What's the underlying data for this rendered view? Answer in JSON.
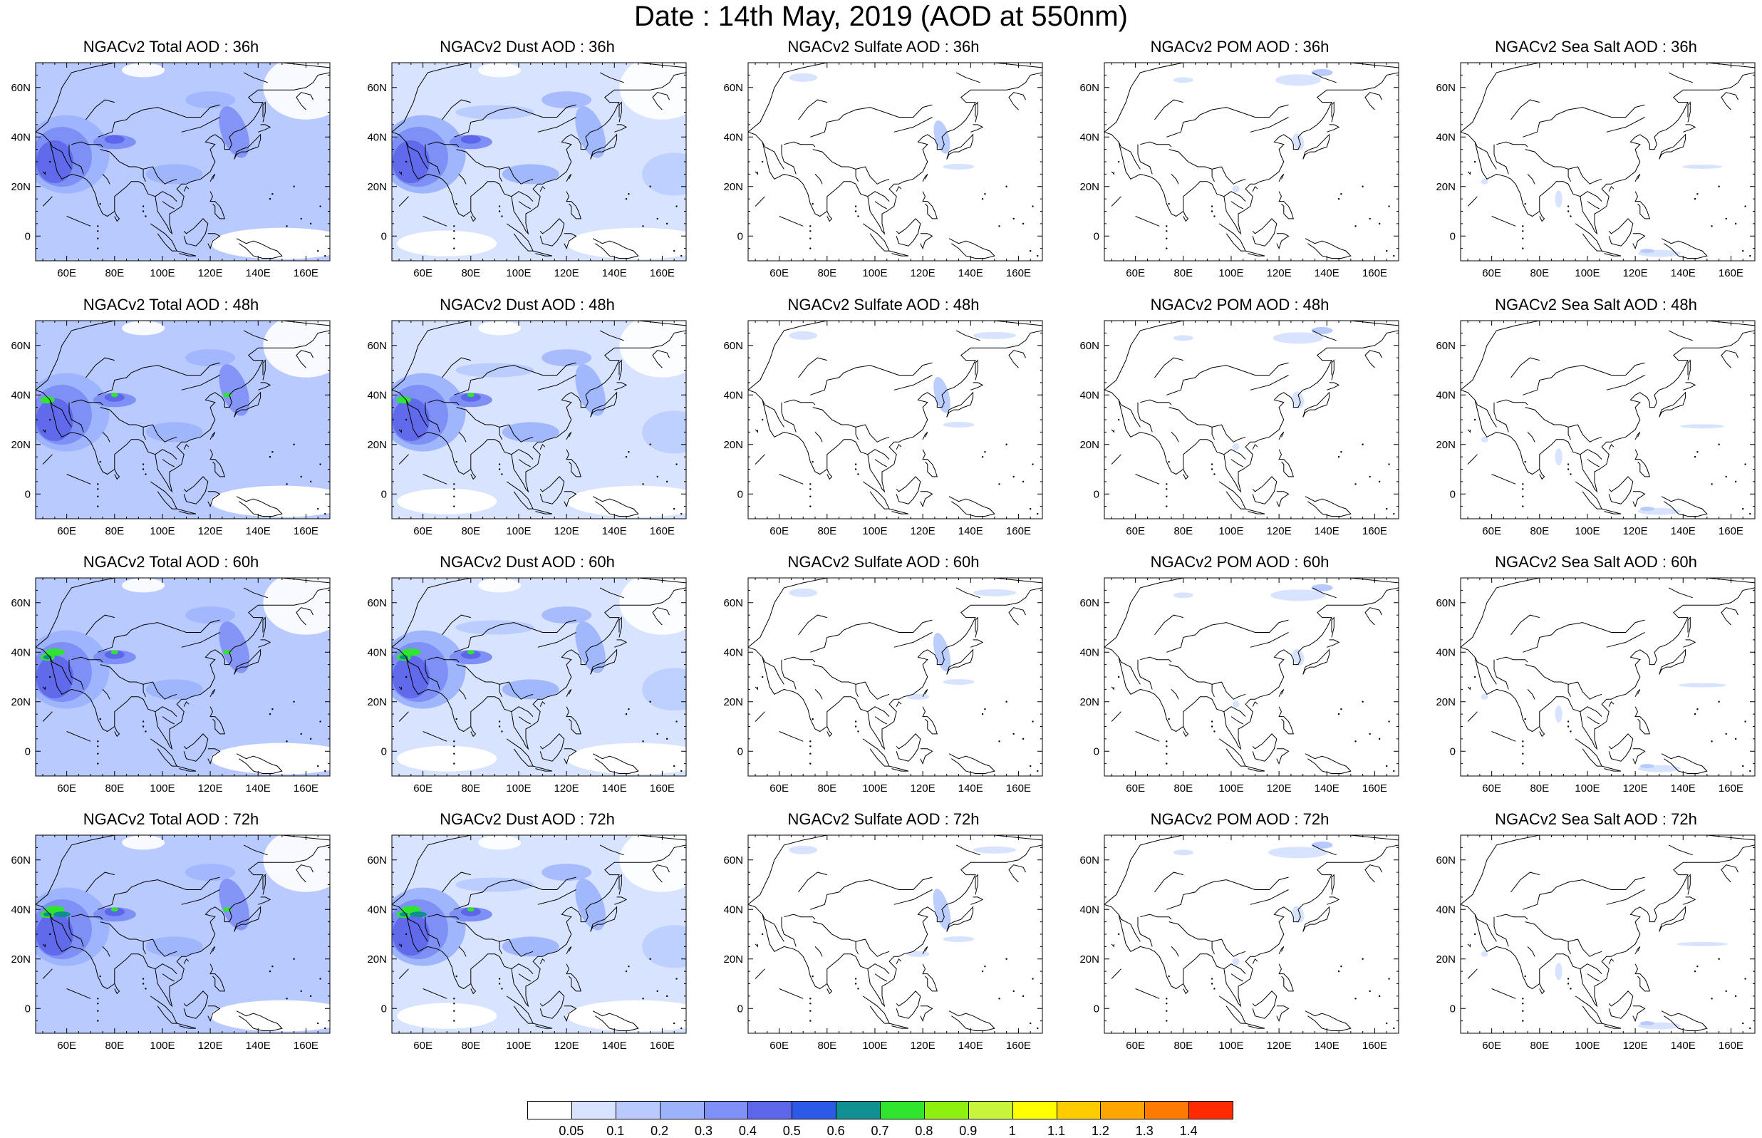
{
  "title": "Date : 14th May, 2019 (AOD at 550nm)",
  "colors": {
    "coast": "#000000",
    "scale": [
      "#ffffff",
      "#d8e3ff",
      "#b8caff",
      "#9cb2fc",
      "#7e8ff6",
      "#5d66ea",
      "#2c5ae6",
      "#0f8f8f",
      "#2ee62e",
      "#8ef00e",
      "#c8f53a",
      "#ffff00",
      "#ffcc00",
      "#ffa500",
      "#ff7a00",
      "#ff2a00"
    ]
  },
  "axes": {
    "x_ticks": [
      "60E",
      "80E",
      "100E",
      "120E",
      "140E",
      "160E"
    ],
    "y_ticks": [
      "60N",
      "40N",
      "20N",
      "0"
    ],
    "x_range_deg": [
      47,
      170
    ],
    "y_range_deg": [
      -10,
      70
    ]
  },
  "variables": [
    "Total",
    "Dust",
    "Sulfate",
    "POM",
    "Sea Salt"
  ],
  "forecast_hours": [
    "36h",
    "48h",
    "60h",
    "72h"
  ],
  "panels": [
    [
      "NGACv2 Total AOD : 36h",
      "NGACv2 Dust AOD : 36h",
      "NGACv2 Sulfate AOD : 36h",
      "NGACv2 POM AOD : 36h",
      "NGACv2 Sea Salt AOD : 36h"
    ],
    [
      "NGACv2 Total AOD : 48h",
      "NGACv2 Dust AOD : 48h",
      "NGACv2 Sulfate AOD : 48h",
      "NGACv2 POM AOD : 48h",
      "NGACv2 Sea Salt AOD : 48h"
    ],
    [
      "NGACv2 Total AOD : 60h",
      "NGACv2 Dust AOD : 60h",
      "NGACv2 Sulfate AOD : 60h",
      "NGACv2 POM AOD : 60h",
      "NGACv2 Sea Salt AOD : 60h"
    ],
    [
      "NGACv2 Total AOD : 72h",
      "NGACv2 Dust AOD : 72h",
      "NGACv2 Sulfate AOD : 72h",
      "NGACv2 POM AOD : 72h",
      "NGACv2 Sea Salt  AOD : 72h"
    ]
  ],
  "colorbar": {
    "labels": [
      "0.05",
      "0.1",
      "0.2",
      "0.3",
      "0.4",
      "0.5",
      "0.6",
      "0.7",
      "0.8",
      "0.9",
      "1",
      "1.1",
      "1.2",
      "1.3",
      "1.4"
    ],
    "colors": [
      "#ffffff",
      "#d8e3ff",
      "#b8caff",
      "#9cb2fc",
      "#7e8ff6",
      "#5d66ea",
      "#2c5ae6",
      "#0f8f8f",
      "#2ee62e",
      "#8ef00e",
      "#c8f53a",
      "#ffff00",
      "#ffcc00",
      "#ffa500",
      "#ff7a00",
      "#ff2a00"
    ]
  }
}
